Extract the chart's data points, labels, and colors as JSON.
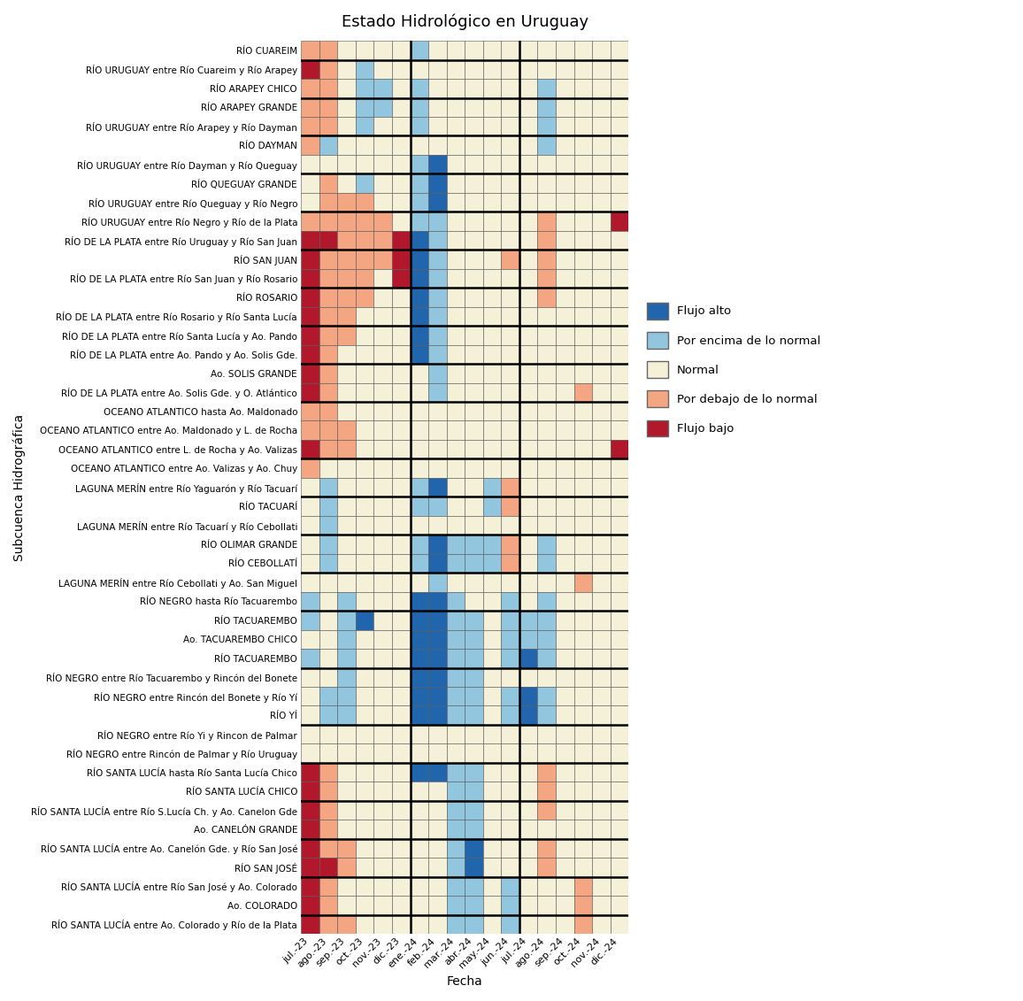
{
  "title": "Estado Hidrológico en Uruguay",
  "xlabel": "Fecha",
  "ylabel": "Subcuenca Hidrográfica",
  "columns": [
    "jul.-23",
    "ago.-23",
    "sep.-23",
    "oct.-23",
    "nov.-23",
    "dic.-23",
    "ene.-24",
    "feb.-24",
    "mar.-24",
    "abr.-24",
    "may.-24",
    "jun.-24",
    "jul.-24",
    "ago.-24",
    "sep.-24",
    "oct.-24",
    "nov.-24",
    "dic.-24"
  ],
  "rows": [
    "RÍO CUAREIM",
    "RÍO URUGUAY entre Río Cuareim y Río Arapey",
    "RÍO ARAPEY CHICO",
    "RÍO ARAPEY GRANDE",
    "RÍO URUGUAY entre Río Arapey y Río Dayman",
    "RÍO DAYMAN",
    "RÍO URUGUAY entre Río Dayman y Río Queguay",
    "RÍO QUEGUAY GRANDE",
    "RÍO URUGUAY entre Río Queguay y Río Negro",
    "RÍO URUGUAY entre Río Negro y Río de la Plata",
    "RÍO DE LA PLATA entre Río Uruguay y Río San Juan",
    "RÍO SAN JUAN",
    "RÍO DE LA PLATA entre Río San Juan y Río Rosario",
    "RÍO ROSARIO",
    "RÍO DE LA PLATA entre Río Rosario y Río Santa Lucía",
    "RÍO DE LA PLATA entre Río Santa Lucía y Ao. Pando",
    "RÍO DE LA PLATA entre Ao. Pando y Ao. Solis Gde.",
    "Ao. SOLIS GRANDE",
    "RÍO DE LA PLATA entre Ao. Solis Gde. y O. Atlántico",
    "OCEANO ATLANTICO hasta Ao. Maldonado",
    "OCEANO ATLANTICO entre Ao. Maldonado y L. de Rocha",
    "OCEANO ATLANTICO entre L. de Rocha y Ao. Valizas",
    "OCEANO ATLANTICO entre Ao. Valizas y Ao. Chuy",
    "LAGUNA MERÍN entre Río Yaguarón y Río Tacuarí",
    "RÍO TACUARÍ",
    "LAGUNA MERÍN entre Río Tacuarí y Río Cebollati",
    "RÍO OLIMAR GRANDE",
    "RÍO CEBOLLATÍ",
    "LAGUNA MERÍN entre Río Cebollati y Ao. San Miguel",
    "RÍO NEGRO hasta Río Tacuarembo",
    "RÍO TACUAREMBO",
    "Ao. TACUAREMBO CHICO",
    "RÍO TACUAREMBO",
    "RÍO NEGRO entre Río Tacuarembo y Rincón del Bonete",
    "RÍO NEGRO entre Rincón del Bonete y Río Yí",
    "RÍO YÍ",
    "RÍO NEGRO entre Río Yi y Rincon de Palmar",
    "RÍO NEGRO entre Rincón de Palmar y Río Uruguay",
    "RÍO SANTA LUCÍA hasta Río Santa Lucía Chico",
    "RÍO SANTA LUCÍA CHICO",
    "RÍO SANTA LUCÍA entre Río S.Lucía Ch. y Ao. Canelon Gde",
    "Ao. CANELÓN GRANDE",
    "RÍO SANTA LUCÍA entre Ao. Canelón Gde. y Río San José",
    "RÍO SAN JOSÉ",
    "RÍO SANTA LUCÍA entre Río San José y Ao. Colorado",
    "Ao. COLORADO",
    "RÍO SANTA LUCÍA entre Ao. Colorado y Río de la Plata"
  ],
  "legend_labels": [
    "Flujo alto",
    "Por encima de lo normal",
    "Normal",
    "Por debajo de lo normal",
    "Flujo bajo"
  ],
  "legend_colors": [
    "#2166ac",
    "#92c5de",
    "#f5f0d8",
    "#f4a582",
    "#b2182b"
  ],
  "color_map": {
    "1": "#2166ac",
    "2": "#92c5de",
    "3": "#f5f0d8",
    "4": "#f4a582",
    "5": "#b2182b"
  },
  "values": [
    [
      4,
      4,
      3,
      3,
      3,
      3,
      2,
      3,
      3,
      3,
      3,
      3,
      3,
      3,
      3,
      3,
      3,
      3
    ],
    [
      5,
      4,
      3,
      2,
      3,
      3,
      3,
      3,
      3,
      3,
      3,
      3,
      3,
      3,
      3,
      3,
      3,
      3
    ],
    [
      4,
      4,
      3,
      2,
      2,
      3,
      2,
      3,
      3,
      3,
      3,
      3,
      3,
      2,
      3,
      3,
      3,
      3
    ],
    [
      4,
      4,
      3,
      2,
      2,
      3,
      2,
      3,
      3,
      3,
      3,
      3,
      3,
      2,
      3,
      3,
      3,
      3
    ],
    [
      4,
      4,
      3,
      2,
      3,
      3,
      2,
      3,
      3,
      3,
      3,
      3,
      3,
      2,
      3,
      3,
      3,
      3
    ],
    [
      4,
      2,
      3,
      3,
      3,
      3,
      3,
      3,
      3,
      3,
      3,
      3,
      3,
      2,
      3,
      3,
      3,
      3
    ],
    [
      3,
      3,
      3,
      3,
      3,
      3,
      2,
      1,
      3,
      3,
      3,
      3,
      3,
      3,
      3,
      3,
      3,
      3
    ],
    [
      3,
      4,
      3,
      2,
      3,
      3,
      2,
      1,
      3,
      3,
      3,
      3,
      3,
      3,
      3,
      3,
      3,
      3
    ],
    [
      3,
      4,
      4,
      4,
      3,
      3,
      2,
      1,
      3,
      3,
      3,
      3,
      3,
      3,
      3,
      3,
      3,
      3
    ],
    [
      4,
      4,
      4,
      4,
      4,
      3,
      2,
      2,
      3,
      3,
      3,
      3,
      3,
      4,
      3,
      3,
      3,
      5
    ],
    [
      5,
      5,
      4,
      4,
      4,
      5,
      1,
      2,
      3,
      3,
      3,
      3,
      3,
      4,
      3,
      3,
      3,
      3
    ],
    [
      5,
      4,
      4,
      4,
      4,
      5,
      1,
      2,
      3,
      3,
      3,
      4,
      3,
      4,
      3,
      3,
      3,
      3
    ],
    [
      5,
      4,
      4,
      4,
      3,
      5,
      1,
      2,
      3,
      3,
      3,
      3,
      3,
      4,
      3,
      3,
      3,
      3
    ],
    [
      5,
      4,
      4,
      4,
      3,
      3,
      1,
      2,
      3,
      3,
      3,
      3,
      3,
      4,
      3,
      3,
      3,
      3
    ],
    [
      5,
      4,
      4,
      3,
      3,
      3,
      1,
      2,
      3,
      3,
      3,
      3,
      3,
      3,
      3,
      3,
      3,
      3
    ],
    [
      5,
      4,
      4,
      3,
      3,
      3,
      1,
      2,
      3,
      3,
      3,
      3,
      3,
      3,
      3,
      3,
      3,
      3
    ],
    [
      5,
      4,
      3,
      3,
      3,
      3,
      1,
      2,
      3,
      3,
      3,
      3,
      3,
      3,
      3,
      3,
      3,
      3
    ],
    [
      5,
      4,
      3,
      3,
      3,
      3,
      3,
      2,
      3,
      3,
      3,
      3,
      3,
      3,
      3,
      3,
      3,
      3
    ],
    [
      5,
      4,
      3,
      3,
      3,
      3,
      3,
      2,
      3,
      3,
      3,
      3,
      3,
      3,
      3,
      4,
      3,
      3
    ],
    [
      4,
      4,
      3,
      3,
      3,
      3,
      3,
      3,
      3,
      3,
      3,
      3,
      3,
      3,
      3,
      3,
      3,
      3
    ],
    [
      4,
      4,
      4,
      3,
      3,
      3,
      3,
      3,
      3,
      3,
      3,
      3,
      3,
      3,
      3,
      3,
      3,
      3
    ],
    [
      5,
      4,
      4,
      3,
      3,
      3,
      3,
      3,
      3,
      3,
      3,
      3,
      3,
      3,
      3,
      3,
      3,
      5
    ],
    [
      4,
      3,
      3,
      3,
      3,
      3,
      3,
      3,
      3,
      3,
      3,
      3,
      3,
      3,
      3,
      3,
      3,
      3
    ],
    [
      3,
      2,
      3,
      3,
      3,
      3,
      2,
      1,
      3,
      3,
      2,
      4,
      3,
      3,
      3,
      3,
      3,
      3
    ],
    [
      3,
      2,
      3,
      3,
      3,
      3,
      2,
      2,
      3,
      3,
      2,
      4,
      3,
      3,
      3,
      3,
      3,
      3
    ],
    [
      3,
      2,
      3,
      3,
      3,
      3,
      3,
      3,
      3,
      3,
      3,
      3,
      3,
      3,
      3,
      3,
      3,
      3
    ],
    [
      3,
      2,
      3,
      3,
      3,
      3,
      2,
      1,
      2,
      2,
      2,
      4,
      3,
      2,
      3,
      3,
      3,
      3
    ],
    [
      3,
      2,
      3,
      3,
      3,
      3,
      2,
      1,
      2,
      2,
      2,
      4,
      3,
      2,
      3,
      3,
      3,
      3
    ],
    [
      3,
      3,
      3,
      3,
      3,
      3,
      3,
      2,
      3,
      3,
      3,
      3,
      3,
      3,
      3,
      4,
      3,
      3
    ],
    [
      2,
      3,
      2,
      3,
      3,
      3,
      1,
      1,
      2,
      3,
      3,
      2,
      3,
      2,
      3,
      3,
      3,
      3
    ],
    [
      2,
      3,
      2,
      1,
      3,
      3,
      1,
      1,
      2,
      2,
      3,
      2,
      2,
      2,
      3,
      3,
      3,
      3
    ],
    [
      3,
      3,
      2,
      3,
      3,
      3,
      1,
      1,
      2,
      2,
      3,
      2,
      2,
      2,
      3,
      3,
      3,
      3
    ],
    [
      2,
      3,
      2,
      3,
      3,
      3,
      1,
      1,
      2,
      2,
      3,
      2,
      1,
      2,
      3,
      3,
      3,
      3
    ],
    [
      3,
      3,
      2,
      3,
      3,
      3,
      1,
      1,
      2,
      2,
      3,
      3,
      3,
      3,
      3,
      3,
      3,
      3
    ],
    [
      3,
      2,
      2,
      3,
      3,
      3,
      1,
      1,
      2,
      2,
      3,
      2,
      1,
      2,
      3,
      3,
      3,
      3
    ],
    [
      3,
      2,
      2,
      3,
      3,
      3,
      1,
      1,
      2,
      2,
      3,
      2,
      1,
      2,
      3,
      3,
      3,
      3
    ],
    [
      3,
      3,
      3,
      3,
      3,
      3,
      3,
      3,
      3,
      3,
      3,
      3,
      3,
      3,
      3,
      3,
      3,
      3
    ],
    [
      3,
      3,
      3,
      3,
      3,
      3,
      3,
      3,
      3,
      3,
      3,
      3,
      3,
      3,
      3,
      3,
      3,
      3
    ],
    [
      5,
      4,
      3,
      3,
      3,
      3,
      1,
      1,
      2,
      2,
      3,
      3,
      3,
      4,
      3,
      3,
      3,
      3
    ],
    [
      5,
      4,
      3,
      3,
      3,
      3,
      3,
      3,
      2,
      2,
      3,
      3,
      3,
      4,
      3,
      3,
      3,
      3
    ],
    [
      5,
      4,
      3,
      3,
      3,
      3,
      3,
      3,
      2,
      2,
      3,
      3,
      3,
      4,
      3,
      3,
      3,
      3
    ],
    [
      5,
      4,
      3,
      3,
      3,
      3,
      3,
      3,
      2,
      2,
      3,
      3,
      3,
      3,
      3,
      3,
      3,
      3
    ],
    [
      5,
      4,
      4,
      3,
      3,
      3,
      3,
      3,
      2,
      1,
      3,
      3,
      3,
      4,
      3,
      3,
      3,
      3
    ],
    [
      5,
      5,
      4,
      3,
      3,
      3,
      3,
      3,
      2,
      1,
      3,
      3,
      3,
      4,
      3,
      3,
      3,
      3
    ],
    [
      5,
      4,
      3,
      3,
      3,
      3,
      3,
      3,
      2,
      2,
      3,
      2,
      3,
      3,
      3,
      4,
      3,
      3
    ],
    [
      5,
      4,
      3,
      3,
      3,
      3,
      3,
      3,
      2,
      2,
      3,
      2,
      3,
      3,
      3,
      4,
      3,
      3
    ],
    [
      5,
      4,
      4,
      3,
      3,
      3,
      3,
      3,
      2,
      2,
      3,
      2,
      3,
      3,
      3,
      4,
      3,
      3
    ]
  ],
  "thick_row_borders": [
    1,
    3,
    5,
    7,
    9,
    11,
    13,
    15,
    17,
    19,
    22,
    24,
    26,
    28,
    30,
    33,
    36,
    38,
    40,
    42,
    44,
    46
  ],
  "thick_col_borders": [
    6,
    12
  ]
}
